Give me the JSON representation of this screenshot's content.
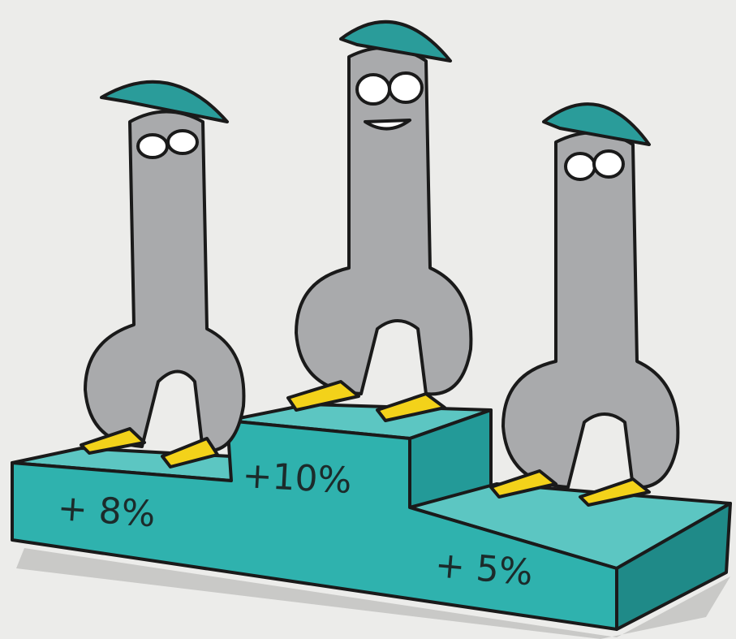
{
  "podium": {
    "steps": [
      {
        "label": "+ 8%"
      },
      {
        "label": "+10%"
      },
      {
        "label": "+ 5%"
      }
    ]
  }
}
